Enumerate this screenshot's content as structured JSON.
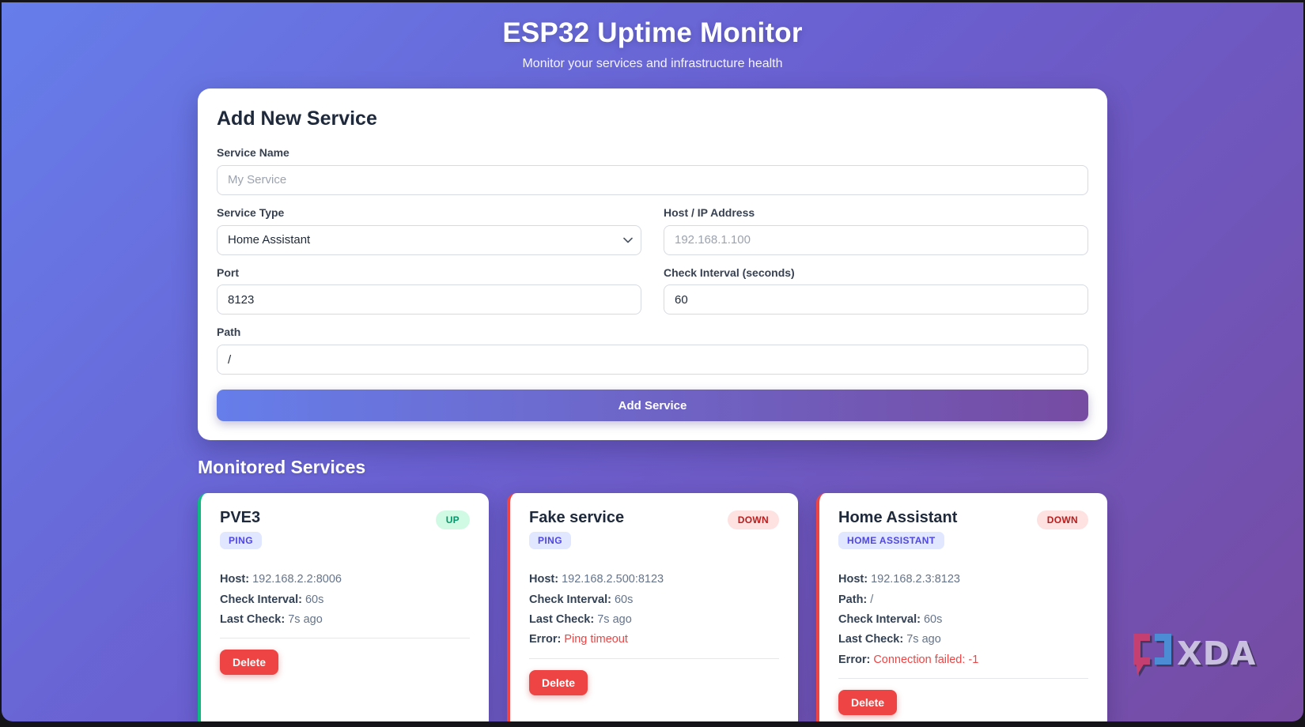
{
  "header": {
    "title": "ESP32 Uptime Monitor",
    "subtitle": "Monitor your services and infrastructure health"
  },
  "add_service_form": {
    "heading": "Add New Service",
    "service_name_label": "Service Name",
    "service_name_placeholder": "My Service",
    "service_type_label": "Service Type",
    "service_type_selected": "Home Assistant",
    "host_label": "Host / IP Address",
    "host_placeholder": "192.168.1.100",
    "port_label": "Port",
    "port_value": "8123",
    "interval_label": "Check Interval (seconds)",
    "interval_value": "60",
    "path_label": "Path",
    "path_value": "/",
    "submit_label": "Add Service"
  },
  "monitored": {
    "heading": "Monitored Services",
    "delete_label": "Delete",
    "cards": [
      {
        "name": "PVE3",
        "type_badge": "PING",
        "status": "UP",
        "status_kind": "up",
        "rows": [
          {
            "label": "Host:",
            "value": "192.168.2.2:8006",
            "error": false
          },
          {
            "label": "Check Interval:",
            "value": "60s",
            "error": false
          },
          {
            "label": "Last Check:",
            "value": "7s ago",
            "error": false
          }
        ]
      },
      {
        "name": "Fake service",
        "type_badge": "PING",
        "status": "DOWN",
        "status_kind": "down",
        "rows": [
          {
            "label": "Host:",
            "value": "192.168.2.500:8123",
            "error": false
          },
          {
            "label": "Check Interval:",
            "value": "60s",
            "error": false
          },
          {
            "label": "Last Check:",
            "value": "7s ago",
            "error": false
          },
          {
            "label": "Error:",
            "value": "Ping timeout",
            "error": true
          }
        ]
      },
      {
        "name": "Home Assistant",
        "type_badge": "HOME ASSISTANT",
        "status": "DOWN",
        "status_kind": "down",
        "rows": [
          {
            "label": "Host:",
            "value": "192.168.2.3:8123",
            "error": false
          },
          {
            "label": "Path:",
            "value": "/",
            "error": false
          },
          {
            "label": "Check Interval:",
            "value": "60s",
            "error": false
          },
          {
            "label": "Last Check:",
            "value": "7s ago",
            "error": false
          },
          {
            "label": "Error:",
            "value": "Connection failed: -1",
            "error": true
          }
        ]
      }
    ]
  },
  "watermark": {
    "text": "XDA"
  },
  "colors": {
    "gradient_start": "#667eea",
    "gradient_end": "#764ba2",
    "status_up_bg": "#d1fae5",
    "status_up_text": "#059669",
    "status_down_bg": "#fee2e2",
    "status_down_text": "#b91c1c",
    "type_badge_bg": "#e0e7ff",
    "type_badge_text": "#4f46e5",
    "up_border": "#10b981",
    "down_border": "#ef4444",
    "danger": "#ef4444"
  }
}
